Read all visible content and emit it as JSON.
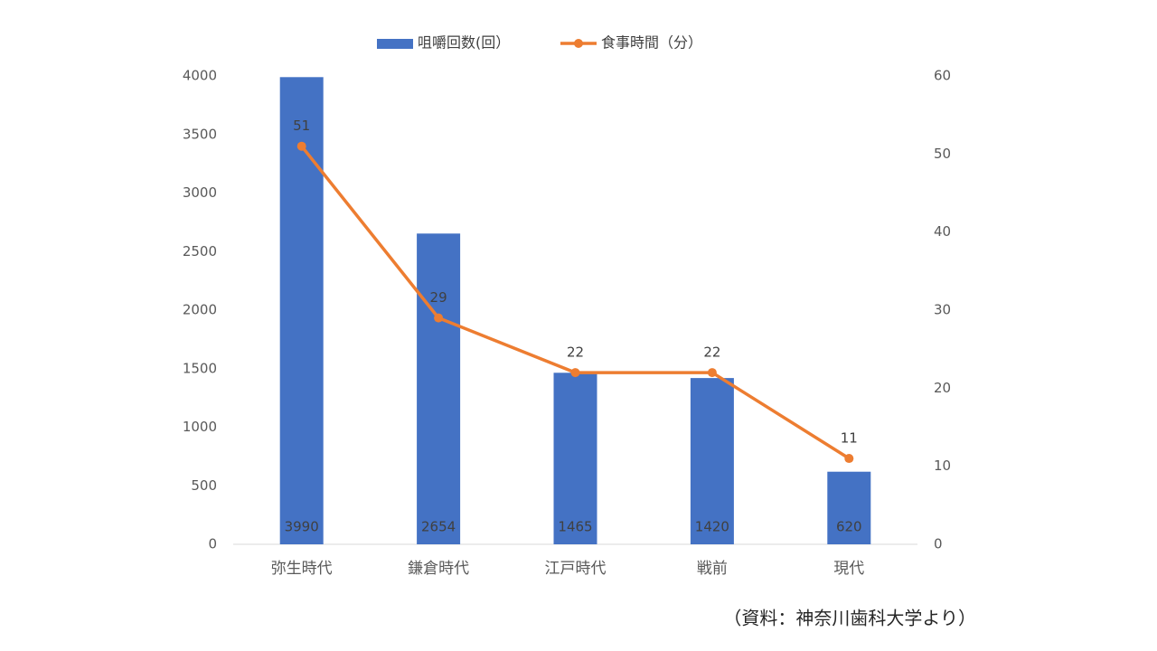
{
  "chart_data": {
    "type": "combo",
    "categories": [
      "弥生時代",
      "鎌倉時代",
      "江戸時代",
      "戦前",
      "現代"
    ],
    "series": [
      {
        "name": "咀嚼回数(回）",
        "type": "bar",
        "color": "#4472c4",
        "values": [
          3990,
          2654,
          1465,
          1420,
          620
        ]
      },
      {
        "name": "食事時間（分）",
        "type": "line",
        "axis": "y2",
        "color": "#ed7d31",
        "values": [
          51,
          29,
          22,
          22,
          11
        ]
      }
    ],
    "ylim": [
      0,
      4000
    ],
    "yticks": [
      0,
      500,
      1000,
      1500,
      2000,
      2500,
      3000,
      3500,
      4000
    ],
    "y2lim": [
      0,
      60
    ],
    "y2ticks": [
      0,
      10,
      20,
      30,
      40,
      50,
      60
    ],
    "legend": "top",
    "grid": false,
    "data_labels": true
  },
  "source": "（資料：神奈川歯科大学より）"
}
